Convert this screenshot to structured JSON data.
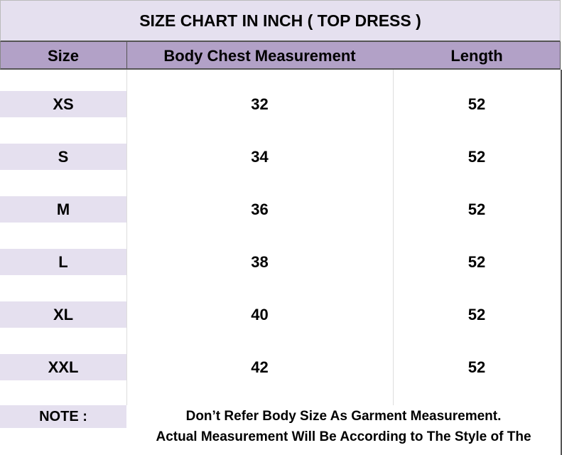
{
  "header": {
    "title": "SIZE  CHART  IN INCH   ( TOP  DRESS )"
  },
  "table": {
    "columns": [
      "Size",
      "Body Chest Measurement",
      "Length"
    ],
    "rows": [
      [
        "XS",
        32,
        52
      ],
      [
        "S",
        34,
        52
      ],
      [
        "M",
        36,
        52
      ],
      [
        "L",
        38,
        52
      ],
      [
        "XL",
        40,
        52
      ],
      [
        "XXL",
        42,
        52
      ]
    ]
  },
  "note": {
    "label": "NOTE  :",
    "lines": [
      "Don’t Refer Body Size As Garment Measurement.",
      "Actual Measurement Will Be According to The Style of The"
    ]
  }
}
